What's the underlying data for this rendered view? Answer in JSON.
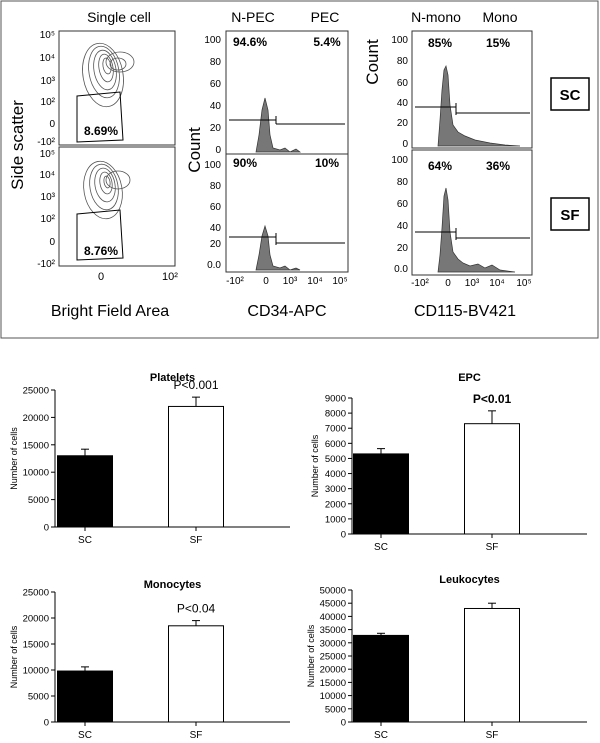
{
  "flow": {
    "panel1": {
      "title": "Single cell",
      "ylabel": "Side scatter",
      "xlabel": "Bright Field Area",
      "yticks": [
        "10⁵",
        "10⁴",
        "10³",
        "10²",
        "0",
        "-10²"
      ],
      "xticks": [
        "0",
        "10²"
      ],
      "pct_sc": "8.69%",
      "pct_sf": "8.76%"
    },
    "panel2": {
      "left_gate": "N-PEC",
      "right_gate": "PEC",
      "ylabel": "Count",
      "xlabel": "CD34-APC",
      "yticks_sc": [
        "100",
        "80",
        "60",
        "40",
        "20",
        "0"
      ],
      "yticks_sf": [
        "100",
        "80",
        "60",
        "40",
        "20",
        "0.0"
      ],
      "xticks": [
        "-10²",
        "0",
        "10³",
        "10⁴",
        "10⁵"
      ],
      "sc_left": "94.6%",
      "sc_right": "5.4%",
      "sf_left": "90%",
      "sf_right": "10%"
    },
    "panel3": {
      "left_gate": "N-mono",
      "right_gate": "Mono",
      "ylabel": "Count",
      "xlabel": "CD115-BV421",
      "yticks_sc": [
        "100",
        "80",
        "60",
        "40",
        "20",
        "0"
      ],
      "yticks_sf": [
        "100",
        "80",
        "60",
        "40",
        "20",
        "0.0"
      ],
      "xticks": [
        "-10²",
        "0",
        "10³",
        "10⁴",
        "10⁵"
      ],
      "sc_left": "85%",
      "sc_right": "15%",
      "sf_left": "64%",
      "sf_right": "36%"
    },
    "labels": {
      "sc": "SC",
      "sf": "SF"
    }
  },
  "chart_data": [
    {
      "type": "bar",
      "title": "Platelets",
      "categories": [
        "SC",
        "SF"
      ],
      "values": [
        13000,
        22000
      ],
      "errors": [
        1200,
        1700
      ],
      "ylabel": "Number of cells",
      "ylim": [
        0,
        25000
      ],
      "yticks": [
        0,
        5000,
        10000,
        15000,
        20000,
        25000
      ],
      "annotation": "P<0.001",
      "colors": [
        "#000000",
        "#ffffff"
      ]
    },
    {
      "type": "bar",
      "title": "EPC",
      "categories": [
        "SC",
        "SF"
      ],
      "values": [
        5300,
        7300
      ],
      "errors": [
        350,
        850
      ],
      "ylabel": "Number of cells",
      "ylim": [
        0,
        9000
      ],
      "yticks": [
        0,
        1000,
        2000,
        3000,
        4000,
        5000,
        6000,
        7000,
        8000,
        9000
      ],
      "annotation": "P<0.01",
      "colors": [
        "#000000",
        "#ffffff"
      ]
    },
    {
      "type": "bar",
      "title": "Monocytes",
      "categories": [
        "SC",
        "SF"
      ],
      "values": [
        9800,
        18500
      ],
      "errors": [
        800,
        1000
      ],
      "ylabel": "Number of cells",
      "ylim": [
        0,
        25000
      ],
      "yticks": [
        0,
        5000,
        10000,
        15000,
        20000,
        25000
      ],
      "annotation": "P<0.04",
      "colors": [
        "#000000",
        "#ffffff"
      ]
    },
    {
      "type": "bar",
      "title": "Leukocytes",
      "categories": [
        "SC",
        "SF"
      ],
      "values": [
        32800,
        43000
      ],
      "errors": [
        800,
        2000
      ],
      "ylabel": "Number of cells",
      "ylim": [
        0,
        50000
      ],
      "yticks": [
        0,
        5000,
        10000,
        15000,
        20000,
        25000,
        30000,
        35000,
        40000,
        45000,
        50000
      ],
      "annotation": "",
      "colors": [
        "#000000",
        "#ffffff"
      ]
    }
  ]
}
